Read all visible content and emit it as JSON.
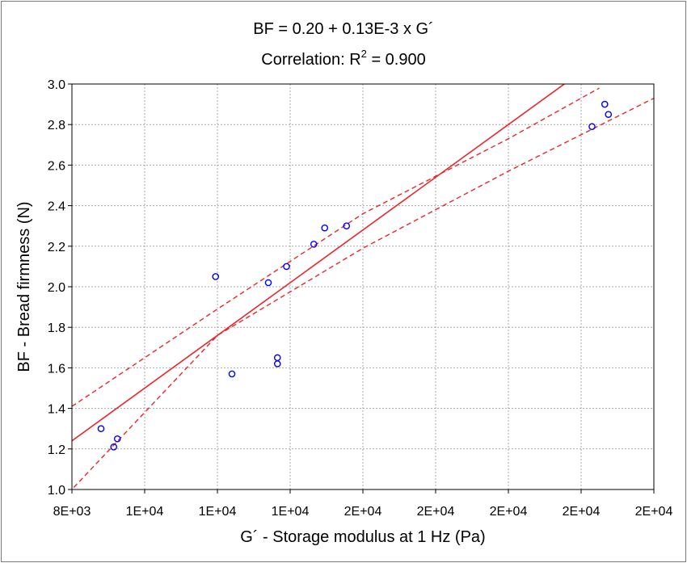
{
  "chart_data": {
    "type": "scatter",
    "title_line1": "BF  = 0.20 + 0.13E-3 x G´",
    "title_line2_prefix": "Correlation: R",
    "title_line2_sup": "2",
    "title_line2_suffix": " = 0.900",
    "xlabel": "G´ - Storage modulus at 1 Hz (Pa)",
    "ylabel": "BF - Bread firmness (N)",
    "xlim": [
      8000,
      24000
    ],
    "ylim": [
      1.0,
      3.0
    ],
    "x_ticks": [
      {
        "value": 8000,
        "label": "8E+03"
      },
      {
        "value": 10000,
        "label": "1E+04"
      },
      {
        "value": 12000,
        "label": "1E+04"
      },
      {
        "value": 14000,
        "label": "1E+04"
      },
      {
        "value": 16000,
        "label": "2E+04"
      },
      {
        "value": 18000,
        "label": "2E+04"
      },
      {
        "value": 20000,
        "label": "2E+04"
      },
      {
        "value": 22000,
        "label": "2E+04"
      },
      {
        "value": 24000,
        "label": "2E+04"
      }
    ],
    "y_ticks": [
      {
        "value": 1.0,
        "label": "1.0"
      },
      {
        "value": 1.2,
        "label": "1.2"
      },
      {
        "value": 1.4,
        "label": "1.4"
      },
      {
        "value": 1.6,
        "label": "1.6"
      },
      {
        "value": 1.8,
        "label": "1.8"
      },
      {
        "value": 2.0,
        "label": "2.0"
      },
      {
        "value": 2.2,
        "label": "2.2"
      },
      {
        "value": 2.4,
        "label": "2.4"
      },
      {
        "value": 2.6,
        "label": "2.6"
      },
      {
        "value": 2.8,
        "label": "2.8"
      },
      {
        "value": 3.0,
        "label": "3.0"
      }
    ],
    "grid": true,
    "points": [
      {
        "x": 8800,
        "y": 1.3
      },
      {
        "x": 9150,
        "y": 1.21
      },
      {
        "x": 9250,
        "y": 1.25
      },
      {
        "x": 11950,
        "y": 2.05
      },
      {
        "x": 12400,
        "y": 1.57
      },
      {
        "x": 13400,
        "y": 2.02
      },
      {
        "x": 13650,
        "y": 1.65
      },
      {
        "x": 13650,
        "y": 1.62
      },
      {
        "x": 13900,
        "y": 2.1
      },
      {
        "x": 14650,
        "y": 2.21
      },
      {
        "x": 14950,
        "y": 2.29
      },
      {
        "x": 15550,
        "y": 2.3
      },
      {
        "x": 22300,
        "y": 2.79
      },
      {
        "x": 22650,
        "y": 2.9
      },
      {
        "x": 22750,
        "y": 2.85
      }
    ],
    "fit_line": {
      "intercept": 0.2,
      "slope": 0.00013
    },
    "confidence_band": {
      "upper": [
        [
          8000,
          1.41
        ],
        [
          12000,
          1.89
        ],
        [
          16000,
          2.36
        ],
        [
          20000,
          2.73
        ],
        [
          22500,
          2.98
        ]
      ],
      "lower": [
        [
          8050,
          1.01
        ],
        [
          12000,
          1.76
        ],
        [
          16000,
          2.19
        ],
        [
          20000,
          2.57
        ],
        [
          24000,
          2.93
        ]
      ]
    },
    "colors": {
      "points": "#0000ff",
      "fit": "#e8262b",
      "grid": "#a8a8a8"
    }
  }
}
